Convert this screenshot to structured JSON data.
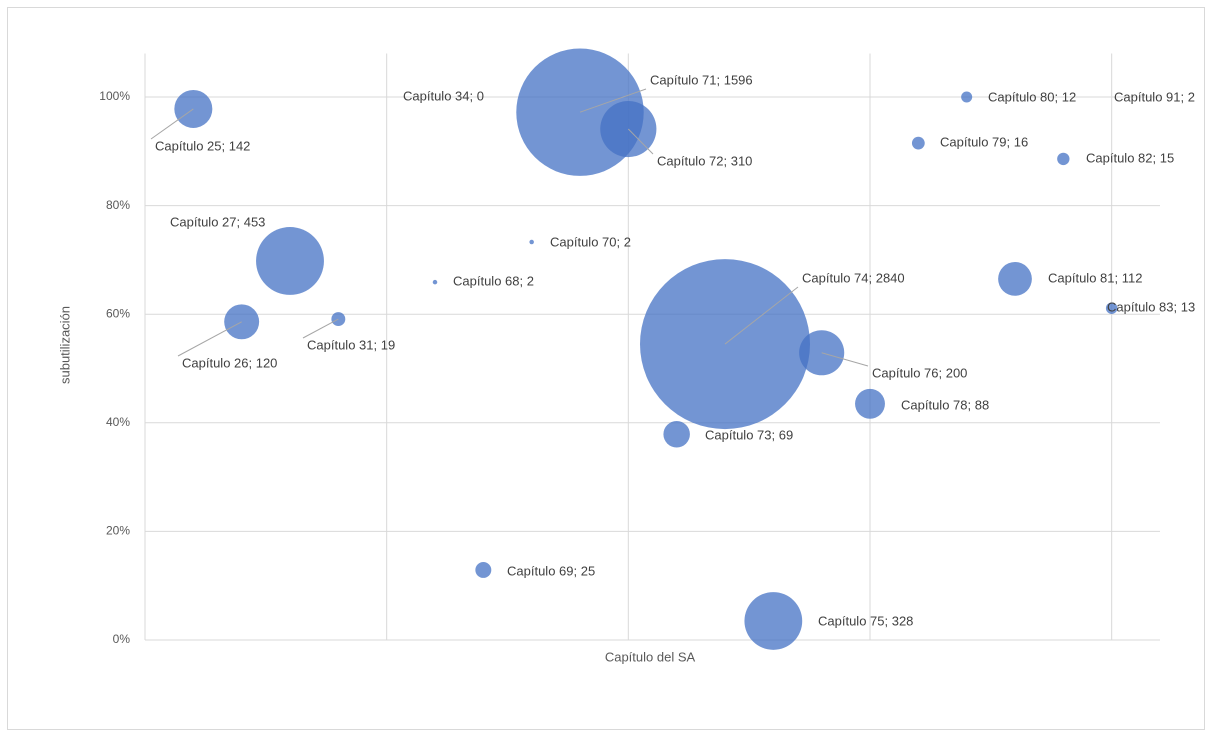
{
  "chart_data": {
    "type": "bubble",
    "x_label": "Capítulo del SA",
    "y_label": "subutilización",
    "categories": [
      "Capítulo 25",
      "Capítulo 26",
      "Capítulo 27",
      "Capítulo 31",
      "Capítulo 34",
      "Capítulo 68",
      "Capítulo 69",
      "Capítulo 70",
      "Capítulo 71",
      "Capítulo 72",
      "Capítulo 73",
      "Capítulo 74",
      "Capítulo 75",
      "Capítulo 76",
      "Capítulo 78",
      "Capítulo 79",
      "Capítulo 80",
      "Capítulo 81",
      "Capítulo 82",
      "Capítulo 83",
      "Capítulo 91"
    ],
    "x": [
      1,
      2,
      3,
      4,
      5,
      6,
      7,
      8,
      9,
      10,
      11,
      12,
      13,
      14,
      15,
      16,
      17,
      18,
      19,
      20,
      21
    ],
    "values": [
      97.8,
      58.6,
      69.8,
      59.1,
      100,
      65.9,
      12.9,
      73.3,
      97.2,
      94.1,
      37.9,
      54.5,
      3.5,
      52.9,
      43.5,
      91.5,
      100,
      66.5,
      88.6,
      61.1,
      100
    ],
    "sizes": [
      142,
      120,
      453,
      19,
      0,
      2,
      25,
      2,
      1596,
      310,
      69,
      2840,
      328,
      200,
      88,
      16,
      12,
      112,
      15,
      13,
      2
    ],
    "value_labels": [
      "Capítulo 25; 142",
      "Capítulo 26; 120",
      "Capítulo 27; 453",
      "Capítulo 31; 19",
      "Capítulo 34; 0",
      "Capítulo 68; 2",
      "Capítulo 69; 25",
      "Capítulo 70; 2",
      "Capítulo 71; 1596",
      "Capítulo 72; 310",
      "Capítulo 73; 69",
      "Capítulo 74; 2840",
      "Capítulo 75; 328",
      "Capítulo 76; 200",
      "Capítulo 78; 88",
      "Capítulo 79; 16",
      "Capítulo 80; 12",
      "Capítulo 81; 112",
      "Capítulo 82; 15",
      "Capítulo 83; 13",
      "Capítulo 91; 2"
    ],
    "color": "#4472c4",
    "xlim": [
      0,
      21
    ],
    "xticks": [
      0,
      5,
      10,
      15,
      20
    ],
    "ylim": [
      0,
      108
    ],
    "yticks": [
      {
        "value": 0,
        "label": "0%"
      },
      {
        "value": 20,
        "label": "20%"
      },
      {
        "value": 40,
        "label": "40%"
      },
      {
        "value": 60,
        "label": "60%"
      },
      {
        "value": 80,
        "label": "80%"
      },
      {
        "value": 100,
        "label": "100%"
      }
    ],
    "grid": true
  }
}
